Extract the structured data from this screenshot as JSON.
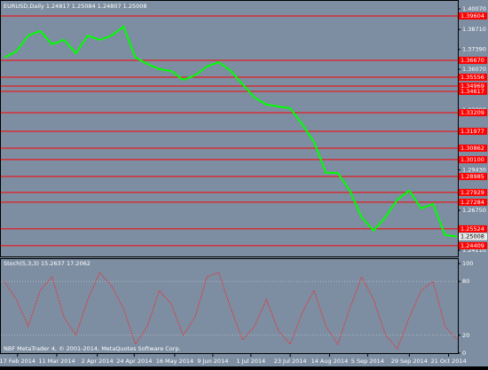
{
  "chart_data": [
    {
      "type": "line",
      "title": "EURUSD,Daily  1.24817 1.25084 1.24807 1.25008",
      "series": [
        {
          "color": "#00ff00",
          "values": [
            1.3685,
            1.3726,
            1.3831,
            1.3861,
            1.3773,
            1.3802,
            1.3714,
            1.3831,
            1.3802,
            1.3831,
            1.389,
            1.3685,
            1.3644,
            1.3608,
            1.3597,
            1.3538,
            1.3567,
            1.3626,
            1.3655,
            1.3597,
            1.3509,
            1.3421,
            1.3374,
            1.3362,
            1.335,
            1.3245,
            1.3127,
            1.2922,
            1.2922,
            1.2805,
            1.2629,
            1.2541,
            1.2629,
            1.2746,
            1.2805,
            1.2687,
            1.2717,
            1.2511,
            1.2501
          ]
        }
      ],
      "xlim": [
        0,
        38
      ],
      "ylim": [
        1.2364,
        1.4066
      ],
      "yticks": [
        {
          "value": 1.4007,
          "label": "1.40070"
        },
        {
          "value": 1.3871,
          "label": "1.38710"
        },
        {
          "value": 1.3739,
          "label": "1.37390"
        },
        {
          "value": 1.3607,
          "label": "1.36070"
        },
        {
          "value": 1.3473,
          "label": "1.34730"
        },
        {
          "value": 1.3339,
          "label": "1.33390"
        },
        {
          "value": 1.3207,
          "label": "1.32070"
        },
        {
          "value": 1.3075,
          "label": "1.30750"
        },
        {
          "value": 1.2943,
          "label": "1.29430"
        },
        {
          "value": 1.2675,
          "label": "1.26750"
        },
        {
          "value": 1.2411,
          "label": "1.24110"
        }
      ],
      "level_color": "#ff0000",
      "levels": [
        {
          "value": 1.39604,
          "label": "1.39604"
        },
        {
          "value": 1.3667,
          "label": "1.36670"
        },
        {
          "value": 1.35556,
          "label": "1.35556"
        },
        {
          "value": 1.34969,
          "label": "1.34969"
        },
        {
          "value": 1.34617,
          "label": "1.34617"
        },
        {
          "value": 1.33209,
          "label": "1.33209"
        },
        {
          "value": 1.31977,
          "label": "1.31977"
        },
        {
          "value": 1.30862,
          "label": "1.30862"
        },
        {
          "value": 1.301,
          "label": "1.30100"
        },
        {
          "value": 1.28985,
          "label": "1.28985"
        },
        {
          "value": 1.27929,
          "label": "1.27929"
        },
        {
          "value": 1.27284,
          "label": "1.27284"
        },
        {
          "value": 1.25524,
          "label": "1.25524"
        },
        {
          "value": 1.24409,
          "label": "1.24409"
        }
      ],
      "last_price": {
        "value": 1.25008,
        "label": "1.25008"
      }
    },
    {
      "type": "line",
      "title": "Stoch(5,3,3) 15.2637 17.2062",
      "annotation": "NBF MetaTrader 4, © 2001-2014, MetaQuotes Software Corp.",
      "series": [
        {
          "color": "#ff2020",
          "values": [
            80,
            60,
            30,
            70,
            85,
            40,
            20,
            60,
            90,
            75,
            50,
            10,
            30,
            70,
            55,
            20,
            40,
            85,
            90,
            50,
            15,
            30,
            60,
            25,
            10,
            45,
            70,
            30,
            10,
            50,
            85,
            60,
            20,
            5,
            40,
            70,
            80,
            30,
            15
          ]
        }
      ],
      "xlim": [
        0,
        38
      ],
      "ylim": [
        0,
        105
      ],
      "yticks": [
        0,
        20,
        80,
        100
      ],
      "xticks": [
        {
          "value": 1.1,
          "label": "17 Feb 2014"
        },
        {
          "value": 4.4,
          "label": "11 Mar 2014"
        },
        {
          "value": 7.8,
          "label": "2 Apr 2014"
        },
        {
          "value": 10.9,
          "label": "24 Apr 2014"
        },
        {
          "value": 14.3,
          "label": "16 May 2014"
        },
        {
          "value": 17.5,
          "label": "9 Jun 2014"
        },
        {
          "value": 20.7,
          "label": "1 Jul 2014"
        },
        {
          "value": 24,
          "label": "23 Jul 2014"
        },
        {
          "value": 27.3,
          "label": "14 Aug 2014"
        },
        {
          "value": 30.5,
          "label": "5 Sep 2014"
        },
        {
          "value": 34,
          "label": "29 Sep 2014"
        },
        {
          "value": 37.3,
          "label": "21 Oct 2014"
        }
      ]
    }
  ]
}
